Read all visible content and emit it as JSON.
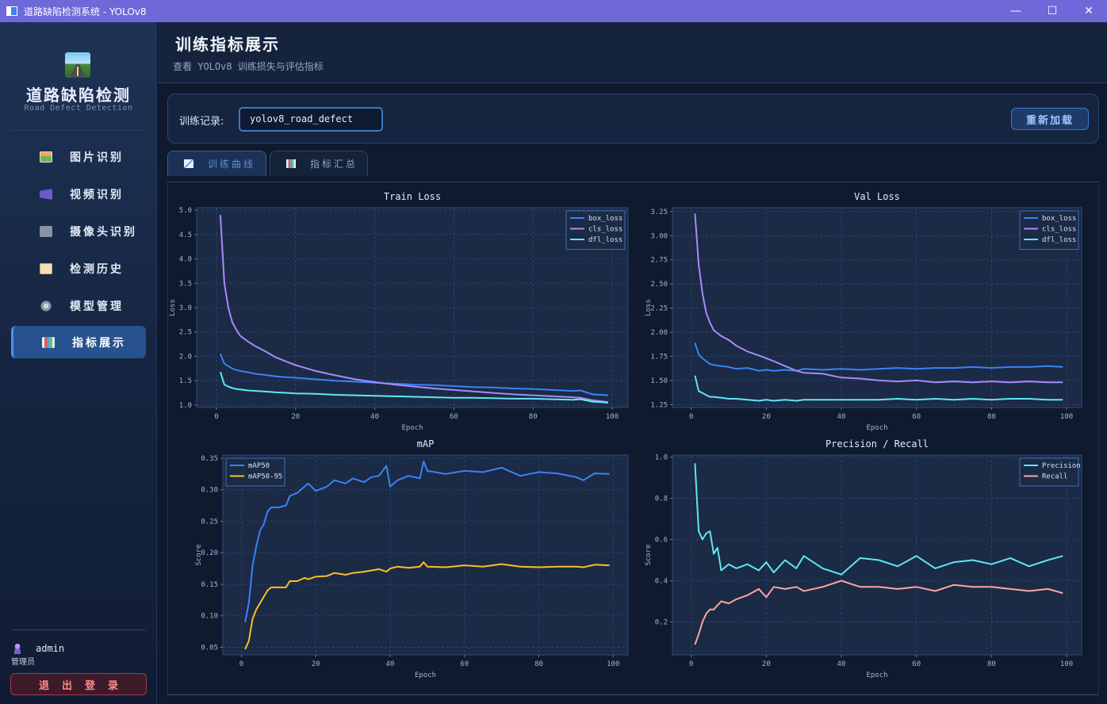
{
  "window": {
    "title": "道路缺陷检测系统 - YOLOv8",
    "controls": [
      "—",
      "☐",
      "✕"
    ]
  },
  "sidebar": {
    "brand_title": "道路缺陷检测",
    "brand_subtitle": "Road Defect Detection",
    "items": [
      {
        "label": "图片识别",
        "icon": "image-icon"
      },
      {
        "label": "视频识别",
        "icon": "video-icon"
      },
      {
        "label": "摄像头识别",
        "icon": "camera-icon"
      },
      {
        "label": "检测历史",
        "icon": "history-icon"
      },
      {
        "label": "模型管理",
        "icon": "gear-icon"
      },
      {
        "label": "指标展示",
        "icon": "chart-icon",
        "active": true
      }
    ],
    "user": {
      "name": "admin",
      "role": "管理员"
    },
    "logout_label": "退出登录"
  },
  "header": {
    "title": "训练指标展示",
    "subtitle": "查看 YOLOv8 训练损失与评估指标"
  },
  "record": {
    "label": "训练记录:",
    "value": "yolov8_road_defect",
    "reload_label": "重新加载"
  },
  "tabs": [
    {
      "label": "训练曲线",
      "active": true
    },
    {
      "label": "指标汇总",
      "active": false
    }
  ],
  "colors": {
    "accent": "#4f8ef7",
    "box_loss": "#3b82f6",
    "cls_loss": "#a78bfa",
    "dfl_loss": "#5ee7f2",
    "map50": "#3b82f6",
    "map50_95": "#fbbf24",
    "precision": "#5ee7f2",
    "recall": "#fca5a5"
  },
  "chart_data": [
    {
      "type": "line",
      "title": "Train Loss",
      "xlabel": "Epoch",
      "ylabel": "Loss",
      "xlim": [
        -5,
        104
      ],
      "ylim": [
        0.95,
        5.05
      ],
      "xticks": [
        0,
        20,
        40,
        60,
        80,
        100
      ],
      "yticks": [
        1.0,
        1.5,
        2.0,
        2.5,
        3.0,
        3.5,
        4.0,
        4.5,
        5.0
      ],
      "ytick_labels": [
        "1.0",
        "1.5",
        "2.0",
        "2.5",
        "3.0",
        "3.5",
        "4.0",
        "4.5",
        "5.0"
      ],
      "legend": "top-right",
      "x": [
        1,
        2,
        3,
        4,
        5,
        6,
        8,
        10,
        12,
        15,
        18,
        20,
        25,
        30,
        35,
        40,
        45,
        50,
        55,
        60,
        65,
        70,
        75,
        80,
        85,
        90,
        92,
        95,
        99
      ],
      "series": [
        {
          "name": "box_loss",
          "color": "#3b82f6",
          "values": [
            2.05,
            1.85,
            1.8,
            1.75,
            1.72,
            1.7,
            1.67,
            1.64,
            1.62,
            1.59,
            1.57,
            1.56,
            1.53,
            1.5,
            1.48,
            1.46,
            1.44,
            1.42,
            1.41,
            1.39,
            1.37,
            1.36,
            1.34,
            1.33,
            1.31,
            1.29,
            1.3,
            1.22,
            1.2
          ]
        },
        {
          "name": "cls_loss",
          "color": "#a78bfa",
          "values": [
            4.9,
            3.5,
            3.0,
            2.7,
            2.55,
            2.42,
            2.3,
            2.2,
            2.12,
            1.98,
            1.88,
            1.82,
            1.7,
            1.61,
            1.53,
            1.47,
            1.42,
            1.38,
            1.34,
            1.31,
            1.28,
            1.25,
            1.22,
            1.2,
            1.18,
            1.16,
            1.15,
            1.1,
            1.06
          ]
        },
        {
          "name": "dfl_loss",
          "color": "#5ee7f2",
          "values": [
            1.68,
            1.42,
            1.38,
            1.35,
            1.33,
            1.32,
            1.3,
            1.29,
            1.28,
            1.26,
            1.25,
            1.24,
            1.23,
            1.21,
            1.2,
            1.19,
            1.18,
            1.17,
            1.16,
            1.15,
            1.15,
            1.14,
            1.13,
            1.13,
            1.12,
            1.11,
            1.12,
            1.07,
            1.05
          ]
        }
      ]
    },
    {
      "type": "line",
      "title": "Val Loss",
      "xlabel": "Epoch",
      "ylabel": "Loss",
      "xlim": [
        -5,
        104
      ],
      "ylim": [
        1.22,
        3.29
      ],
      "xticks": [
        0,
        20,
        40,
        60,
        80,
        100
      ],
      "yticks": [
        1.25,
        1.5,
        1.75,
        2.0,
        2.25,
        2.5,
        2.75,
        3.0,
        3.25
      ],
      "ytick_labels": [
        "1.25",
        "1.50",
        "1.75",
        "2.00",
        "2.25",
        "2.50",
        "2.75",
        "3.00",
        "3.25"
      ],
      "legend": "top-right",
      "x": [
        1,
        2,
        3,
        4,
        5,
        6,
        8,
        10,
        12,
        15,
        18,
        20,
        22,
        25,
        28,
        30,
        35,
        40,
        45,
        50,
        55,
        60,
        65,
        70,
        75,
        80,
        85,
        90,
        95,
        99
      ],
      "series": [
        {
          "name": "box_loss",
          "color": "#3b82f6",
          "values": [
            1.89,
            1.77,
            1.73,
            1.7,
            1.67,
            1.66,
            1.65,
            1.64,
            1.62,
            1.63,
            1.6,
            1.61,
            1.6,
            1.61,
            1.6,
            1.62,
            1.61,
            1.62,
            1.61,
            1.62,
            1.63,
            1.62,
            1.63,
            1.63,
            1.64,
            1.63,
            1.64,
            1.64,
            1.65,
            1.64
          ]
        },
        {
          "name": "cls_loss",
          "color": "#a78bfa",
          "values": [
            3.23,
            2.7,
            2.4,
            2.2,
            2.1,
            2.02,
            1.96,
            1.92,
            1.86,
            1.8,
            1.76,
            1.73,
            1.7,
            1.65,
            1.6,
            1.58,
            1.57,
            1.53,
            1.52,
            1.5,
            1.49,
            1.5,
            1.48,
            1.49,
            1.48,
            1.49,
            1.48,
            1.49,
            1.48,
            1.48
          ]
        },
        {
          "name": "dfl_loss",
          "color": "#5ee7f2",
          "values": [
            1.55,
            1.39,
            1.37,
            1.35,
            1.33,
            1.33,
            1.32,
            1.31,
            1.31,
            1.3,
            1.29,
            1.3,
            1.29,
            1.3,
            1.29,
            1.3,
            1.3,
            1.3,
            1.3,
            1.3,
            1.31,
            1.3,
            1.31,
            1.3,
            1.31,
            1.3,
            1.31,
            1.31,
            1.3,
            1.3
          ]
        }
      ]
    },
    {
      "type": "line",
      "title": "mAP",
      "xlabel": "Epoch",
      "ylabel": "Score",
      "xlim": [
        -5,
        104
      ],
      "ylim": [
        0.038,
        0.355
      ],
      "xticks": [
        0,
        20,
        40,
        60,
        80,
        100
      ],
      "yticks": [
        0.05,
        0.1,
        0.15,
        0.2,
        0.25,
        0.3,
        0.35
      ],
      "ytick_labels": [
        "0.05",
        "0.10",
        "0.15",
        "0.20",
        "0.25",
        "0.30",
        "0.35"
      ],
      "legend": "top-left",
      "x": [
        1,
        2,
        3,
        4,
        5,
        6,
        7,
        8,
        10,
        12,
        13,
        15,
        17,
        18,
        20,
        23,
        25,
        28,
        30,
        33,
        35,
        37,
        39,
        40,
        42,
        45,
        48,
        49,
        50,
        55,
        60,
        65,
        70,
        75,
        80,
        85,
        90,
        92,
        95,
        99
      ],
      "series": [
        {
          "name": "mAP50",
          "color": "#3b82f6",
          "values": [
            0.09,
            0.12,
            0.18,
            0.21,
            0.235,
            0.245,
            0.265,
            0.272,
            0.272,
            0.275,
            0.29,
            0.295,
            0.305,
            0.31,
            0.298,
            0.305,
            0.315,
            0.31,
            0.318,
            0.312,
            0.32,
            0.322,
            0.338,
            0.305,
            0.315,
            0.322,
            0.318,
            0.345,
            0.33,
            0.325,
            0.33,
            0.328,
            0.335,
            0.322,
            0.328,
            0.326,
            0.32,
            0.315,
            0.326,
            0.325
          ]
        },
        {
          "name": "mAP50-95",
          "color": "#fbbf24",
          "values": [
            0.047,
            0.06,
            0.095,
            0.11,
            0.12,
            0.13,
            0.14,
            0.145,
            0.145,
            0.145,
            0.155,
            0.155,
            0.16,
            0.158,
            0.162,
            0.163,
            0.168,
            0.165,
            0.168,
            0.17,
            0.172,
            0.174,
            0.17,
            0.175,
            0.178,
            0.176,
            0.178,
            0.185,
            0.178,
            0.177,
            0.18,
            0.178,
            0.182,
            0.178,
            0.177,
            0.178,
            0.178,
            0.177,
            0.181,
            0.18
          ]
        }
      ]
    },
    {
      "type": "line",
      "title": "Precision / Recall",
      "xlabel": "Epoch",
      "ylabel": "Score",
      "xlim": [
        -5,
        104
      ],
      "ylim": [
        0.04,
        1.01
      ],
      "xticks": [
        0,
        20,
        40,
        60,
        80,
        100
      ],
      "yticks": [
        0.2,
        0.4,
        0.6,
        0.8,
        1.0
      ],
      "ytick_labels": [
        "0.2",
        "0.4",
        "0.6",
        "0.8",
        "1.0"
      ],
      "legend": "top-right",
      "x": [
        1,
        2,
        3,
        4,
        5,
        6,
        7,
        8,
        10,
        12,
        15,
        18,
        20,
        22,
        25,
        28,
        30,
        35,
        40,
        45,
        50,
        55,
        60,
        65,
        70,
        75,
        80,
        85,
        90,
        95,
        99
      ],
      "series": [
        {
          "name": "Precision",
          "color": "#5ee7f2",
          "values": [
            0.97,
            0.64,
            0.6,
            0.63,
            0.64,
            0.53,
            0.56,
            0.45,
            0.48,
            0.46,
            0.48,
            0.45,
            0.49,
            0.44,
            0.5,
            0.46,
            0.52,
            0.46,
            0.43,
            0.51,
            0.5,
            0.47,
            0.52,
            0.46,
            0.49,
            0.5,
            0.48,
            0.51,
            0.47,
            0.5,
            0.52
          ]
        },
        {
          "name": "Recall",
          "color": "#fca5a5",
          "values": [
            0.09,
            0.14,
            0.2,
            0.24,
            0.26,
            0.26,
            0.28,
            0.3,
            0.29,
            0.31,
            0.33,
            0.36,
            0.32,
            0.37,
            0.36,
            0.37,
            0.35,
            0.37,
            0.4,
            0.37,
            0.37,
            0.36,
            0.37,
            0.35,
            0.38,
            0.37,
            0.37,
            0.36,
            0.35,
            0.36,
            0.34
          ]
        }
      ]
    }
  ]
}
